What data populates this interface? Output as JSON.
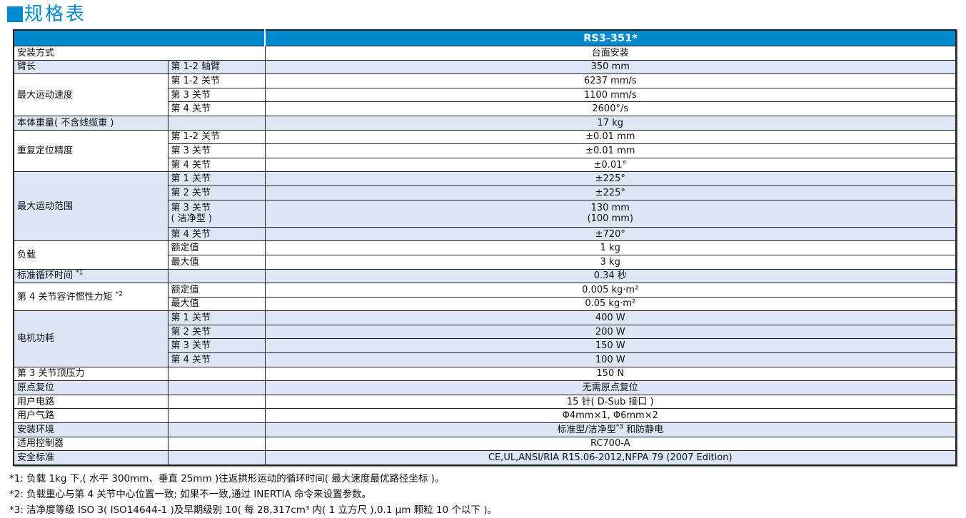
{
  "page_title": "规格表",
  "colors": {
    "accent_blue": "#0088ce",
    "row_shade": "#dce6f5",
    "border": "#1f1f1f",
    "header_text": "#ffffff"
  },
  "table": {
    "model_header": "RS3-351*",
    "rows": [
      {
        "label": "安装方式",
        "span2": true,
        "value": "台面安装",
        "shade": false
      },
      {
        "label": "臂长",
        "sub": "第 1-2 轴臂",
        "value": "350 mm",
        "shade": true
      },
      {
        "label": "最大运动速度",
        "rowspan": 3,
        "sub": "第 1-2 关节",
        "value": "6237 mm/s",
        "shade": false
      },
      {
        "sub": "第 3 关节",
        "value": "1100 mm/s",
        "shade": false
      },
      {
        "sub": "第 4 关节",
        "value": "2600°/s",
        "shade": false
      },
      {
        "label": "本体重量( 不含线缆重 )",
        "sub": "",
        "value": "17 kg",
        "shade": true
      },
      {
        "label": "重复定位精度",
        "rowspan": 3,
        "sub": "第 1-2 关节",
        "value": "±0.01 mm",
        "shade": false
      },
      {
        "sub": "第 3 关节",
        "value": "±0.01 mm",
        "shade": false
      },
      {
        "sub": "第 4 关节",
        "value": "±0.01°",
        "shade": false
      },
      {
        "label": "最大运动范围",
        "rowspan": 4,
        "sub": "第 1 关节",
        "value": "±225°",
        "shade": true
      },
      {
        "sub": "第 2 关节",
        "value": "±225°",
        "shade": true
      },
      {
        "sub": "第 3 关节\n( 洁净型 )",
        "value": "130 mm\n(100 mm)",
        "shade": true,
        "tall": true
      },
      {
        "sub": "第 4 关节",
        "value": "±720°",
        "shade": true
      },
      {
        "label": "负载",
        "rowspan": 2,
        "sub": "额定值",
        "value": "1 kg",
        "shade": false
      },
      {
        "sub": "最大值",
        "value": "3 kg",
        "shade": false
      },
      {
        "label": "标准循环时间 ^*1^",
        "sub": "",
        "value": "0.34 秒",
        "shade": true
      },
      {
        "label": "第 4 关节容许惯性力矩 ^*2^",
        "rowspan": 2,
        "sub": "额定值",
        "value": "0.005 kg·m²",
        "shade": false
      },
      {
        "sub": "最大值",
        "value": "0.05 kg·m²",
        "shade": false
      },
      {
        "label": "电机功耗",
        "rowspan": 4,
        "sub": "第 1 关节",
        "value": "400 W",
        "shade": true
      },
      {
        "sub": "第 2 关节",
        "value": "200 W",
        "shade": true
      },
      {
        "sub": "第 3 关节",
        "value": "150 W",
        "shade": true
      },
      {
        "sub": "第 4 关节",
        "value": "100 W",
        "shade": true
      },
      {
        "label": "第 3 关节顶压力",
        "sub": "",
        "value": "150 N",
        "shade": false
      },
      {
        "label": "原点复位",
        "sub": "",
        "value": "无需原点复位",
        "shade": true
      },
      {
        "label": "用户电路",
        "sub": "",
        "value": "15 针( D-Sub 接口 )",
        "shade": false
      },
      {
        "label": "用户气路",
        "sub": "",
        "value": "Φ4mm×1, Φ6mm×2",
        "shade": false
      },
      {
        "label": "安装环境",
        "sub": "",
        "value": "标准型/洁净型^*3^ 和防静电",
        "shade": true
      },
      {
        "label": "适用控制器",
        "sub": "",
        "value": "RC700-A",
        "shade": false
      },
      {
        "label": "安全标准",
        "sub": "",
        "value": "CE,UL,ANSI/RIA R15.06-2012,NFPA 79 (2007 Edition)",
        "shade": true
      }
    ]
  },
  "footnotes": [
    "*1: 负载 1kg 下,( 水平 300mm、垂直 25mm )往返拱形运动的循环时间( 最大速度最优路径坐标 )。",
    "*2: 负载重心与第 4 关节中心位置一致; 如果不一致,通过 INERTIA 命令来设置参数。",
    "*3: 洁净度等级 ISO 3( ISO14644-1 )及早期级别 10( 每 28,317cm³ 内( 1 立方尺 ),0.1 µm 颗粒 10 个以下 )。"
  ]
}
